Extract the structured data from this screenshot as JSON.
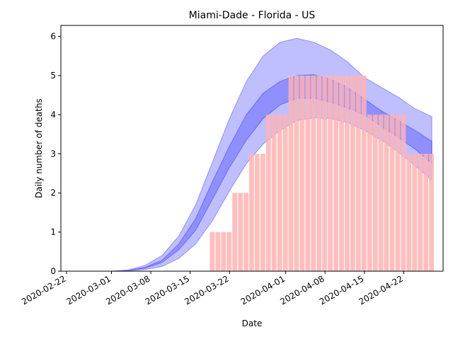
{
  "chart_data": {
    "type": "bar",
    "title": "Miami-Dade - Florida - US",
    "xlabel": "Date",
    "ylabel": "Daily number of deaths",
    "x_tick_labels": [
      "2020-02-22",
      "2020-03-01",
      "2020-03-08",
      "2020-03-15",
      "2020-03-22",
      "2020-04-01",
      "2020-04-08",
      "2020-04-15",
      "2020-04-22"
    ],
    "x_tick_days": [
      -8,
      0,
      7,
      14,
      21,
      31,
      38,
      45,
      52
    ],
    "y_ticks": [
      0,
      1,
      2,
      3,
      4,
      5,
      6
    ],
    "xlim_days": [
      -9,
      59
    ],
    "ylim": [
      0,
      6.28
    ],
    "grid": false,
    "legend": "none",
    "x_reference_date": "2020-03-01",
    "bar_color": "#ffb3b3",
    "band_color": "#0000ff",
    "bars": {
      "days": [
        18,
        19,
        20,
        21,
        22,
        23,
        24,
        25,
        26,
        27,
        28,
        29,
        30,
        31,
        32,
        33,
        34,
        35,
        36,
        37,
        38,
        39,
        40,
        41,
        42,
        43,
        44,
        45,
        46,
        47,
        48,
        49,
        50,
        51,
        52,
        53,
        54,
        55,
        56,
        57
      ],
      "values": [
        1,
        1,
        1,
        1,
        2,
        2,
        2,
        3,
        3,
        3,
        4,
        4,
        4,
        4,
        5,
        5,
        5,
        5,
        5,
        5,
        5,
        5,
        5,
        5,
        5,
        5,
        5,
        5,
        4,
        4,
        4,
        4,
        4,
        4,
        4,
        3,
        3,
        3,
        3,
        3
      ]
    },
    "series": [
      {
        "kind": "outer-band",
        "x_days": [
          0,
          3,
          6,
          9,
          12,
          15,
          18,
          21,
          24,
          27,
          30,
          33,
          36,
          39,
          42,
          45,
          48,
          51,
          54,
          57
        ],
        "lower": [
          0,
          0.01,
          0.04,
          0.12,
          0.33,
          0.7,
          1.3,
          2.05,
          2.75,
          3.25,
          3.6,
          3.85,
          3.92,
          3.9,
          3.8,
          3.6,
          3.35,
          3.05,
          2.7,
          2.32
        ],
        "upper": [
          0,
          0.03,
          0.15,
          0.4,
          0.9,
          1.7,
          2.8,
          3.9,
          4.85,
          5.5,
          5.85,
          5.95,
          5.85,
          5.65,
          5.35,
          4.95,
          4.7,
          4.45,
          4.15,
          3.95
        ]
      },
      {
        "kind": "inner-band",
        "x_days": [
          0,
          3,
          6,
          9,
          12,
          15,
          18,
          21,
          24,
          27,
          30,
          33,
          36,
          39,
          42,
          45,
          48,
          51,
          54,
          57
        ],
        "lower": [
          0,
          0.02,
          0.08,
          0.22,
          0.55,
          1.05,
          1.85,
          2.65,
          3.35,
          3.9,
          4.25,
          4.42,
          4.42,
          4.32,
          4.17,
          4.0,
          3.7,
          3.42,
          3.12,
          2.75
        ],
        "upper": [
          0,
          0.02,
          0.1,
          0.28,
          0.7,
          1.35,
          2.3,
          3.2,
          4.0,
          4.55,
          4.85,
          5.0,
          5.02,
          4.9,
          4.7,
          4.4,
          4.1,
          3.85,
          3.6,
          3.32
        ]
      }
    ]
  }
}
